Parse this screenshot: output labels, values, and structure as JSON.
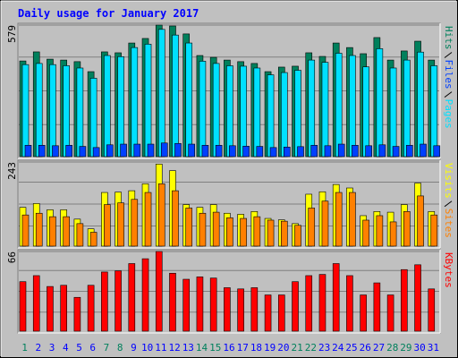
{
  "chart_data": [
    {
      "type": "bar",
      "title": "Daily usage for January 2017",
      "ylim": [
        0,
        579
      ],
      "yticks": [
        579
      ],
      "series": [
        {
          "name": "Hits",
          "color": "#00805c",
          "values": [
            421,
            461,
            429,
            425,
            418,
            374,
            461,
            457,
            500,
            520,
            579,
            575,
            540,
            445,
            437,
            425,
            418,
            410,
            374,
            394,
            398,
            457,
            441,
            500,
            480,
            453,
            524,
            425,
            465,
            508,
            425
          ]
        },
        {
          "name": "Files",
          "color": "#0040ff",
          "values": [
            50,
            50,
            48,
            50,
            45,
            40,
            52,
            55,
            55,
            55,
            60,
            58,
            55,
            50,
            50,
            48,
            46,
            45,
            40,
            42,
            44,
            50,
            48,
            55,
            50,
            48,
            52,
            45,
            50,
            55,
            48
          ]
        },
        {
          "name": "Pages",
          "color": "#00e0ff",
          "values": [
            405,
            410,
            405,
            400,
            390,
            345,
            445,
            440,
            480,
            495,
            560,
            535,
            500,
            420,
            410,
            400,
            398,
            390,
            360,
            370,
            380,
            425,
            415,
            455,
            445,
            395,
            475,
            390,
            425,
            460,
            400
          ]
        }
      ]
    },
    {
      "type": "bar",
      "ylim": [
        0,
        243
      ],
      "yticks": [
        243
      ],
      "series": [
        {
          "name": "Visits",
          "color": "#ffff00",
          "values": [
            112,
            123,
            105,
            105,
            78,
            50,
            155,
            156,
            160,
            180,
            237,
            218,
            120,
            112,
            120,
            95,
            92,
            100,
            80,
            76,
            65,
            150,
            157,
            178,
            168,
            88,
            100,
            98,
            120,
            182,
            100
          ]
        },
        {
          "name": "Sites",
          "color": "#ff8000",
          "values": [
            90,
            95,
            85,
            85,
            65,
            40,
            120,
            125,
            135,
            155,
            180,
            160,
            110,
            95,
            98,
            82,
            80,
            85,
            75,
            72,
            60,
            110,
            130,
            155,
            155,
            75,
            88,
            70,
            100,
            145,
            90
          ]
        }
      ]
    },
    {
      "type": "bar",
      "ylim": [
        0,
        66
      ],
      "yticks": [
        66
      ],
      "categories": [
        "1",
        "2",
        "3",
        "4",
        "5",
        "6",
        "7",
        "8",
        "9",
        "10",
        "11",
        "12",
        "13",
        "14",
        "15",
        "16",
        "17",
        "18",
        "19",
        "20",
        "21",
        "22",
        "23",
        "24",
        "25",
        "26",
        "27",
        "28",
        "29",
        "30",
        "31"
      ],
      "category_colors": [
        "#00805c",
        "#0000ff",
        "#0000ff",
        "#0000ff",
        "#0000ff",
        "#0000ff",
        "#00805c",
        "#00805c",
        "#0000ff",
        "#0000ff",
        "#0000ff",
        "#0000ff",
        "#0000ff",
        "#00805c",
        "#00805c",
        "#0000ff",
        "#0000ff",
        "#0000ff",
        "#0000ff",
        "#0000ff",
        "#00805c",
        "#00805c",
        "#0000ff",
        "#0000ff",
        "#0000ff",
        "#0000ff",
        "#0000ff",
        "#00805c",
        "#00805c",
        "#0000ff",
        "#0000ff"
      ],
      "series": [
        {
          "name": "KBytes",
          "color": "#ff0000",
          "values": [
            41,
            46,
            37,
            38,
            28,
            38,
            49,
            50,
            56,
            60,
            66,
            48,
            43,
            45,
            44,
            36,
            35,
            36,
            30,
            30,
            41,
            46,
            47,
            56,
            46,
            30,
            40,
            30,
            51,
            55,
            35
          ]
        }
      ]
    }
  ]
}
